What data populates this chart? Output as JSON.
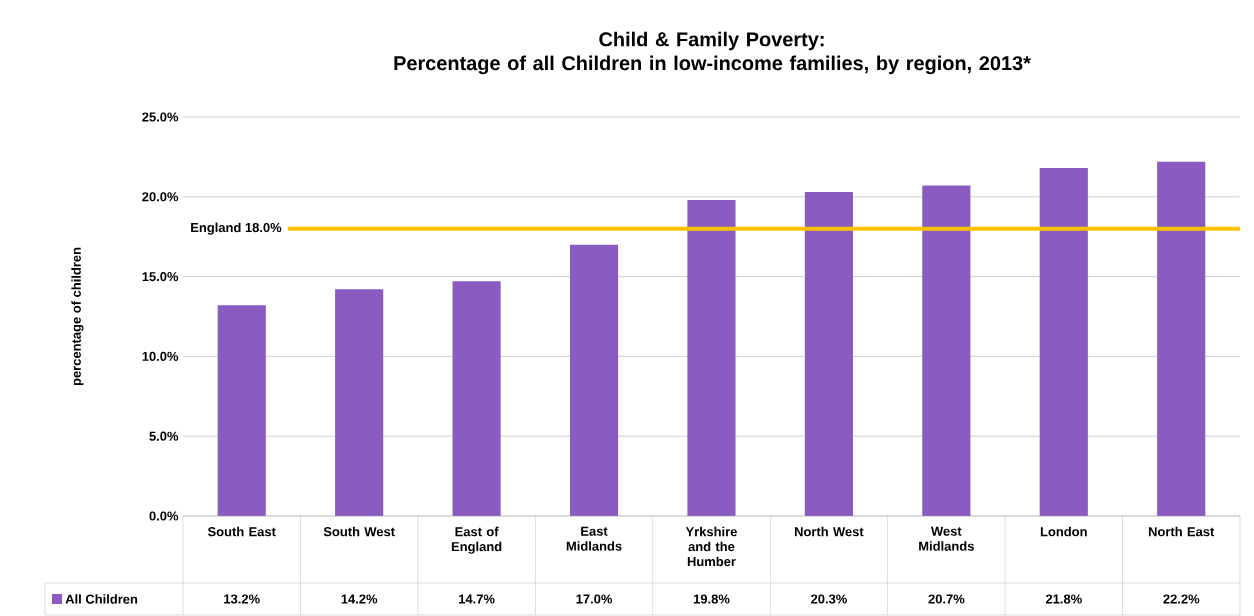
{
  "chart_data": {
    "type": "bar",
    "title": "Child & Family Poverty:\nPercentage of all Children in low-income families, by region, 2013*",
    "ylabel": "percentage of children",
    "categories": [
      "South East",
      "South West",
      "East of England",
      "East Midlands",
      "Yrkshire and the Humber",
      "North West",
      "West Midlands",
      "London",
      "North East"
    ],
    "series": [
      {
        "name": "All Children",
        "color": "#8a5cc2",
        "values": [
          13.2,
          14.2,
          14.7,
          17.0,
          19.8,
          20.3,
          20.7,
          21.8,
          22.2
        ]
      }
    ],
    "value_labels": [
      "13.2%",
      "14.2%",
      "14.7%",
      "17.0%",
      "19.8%",
      "20.3%",
      "20.7%",
      "21.8%",
      "22.2%"
    ],
    "ylim": [
      0,
      25
    ],
    "yticks": [
      {
        "value": 0,
        "label": "0.0%"
      },
      {
        "value": 5,
        "label": "5.0%"
      },
      {
        "value": 10,
        "label": "10.0%"
      },
      {
        "value": 15,
        "label": "15.0%"
      },
      {
        "value": 20,
        "label": "20.0%"
      },
      {
        "value": 25,
        "label": "25.0%"
      }
    ],
    "ref_lines": [
      {
        "axis": "y",
        "value": 18.0,
        "label": "England 18.0%",
        "color": "#ffc000"
      }
    ],
    "grid": "y",
    "legend": "bottom"
  }
}
